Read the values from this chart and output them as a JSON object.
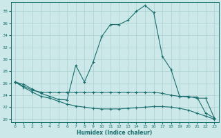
{
  "xlabel": "Humidex (Indice chaleur)",
  "background_color": "#cce8e8",
  "line_color": "#1a6e6e",
  "grid_color": "#b0d4d4",
  "xlim": [
    -0.5,
    23.5
  ],
  "ylim": [
    19.5,
    39.5
  ],
  "yticks": [
    20,
    22,
    24,
    26,
    28,
    30,
    32,
    34,
    36,
    38
  ],
  "xticks": [
    0,
    1,
    2,
    3,
    4,
    5,
    6,
    7,
    8,
    9,
    10,
    11,
    12,
    13,
    14,
    15,
    16,
    17,
    18,
    19,
    20,
    21,
    22,
    23
  ],
  "series1_x": [
    0,
    1,
    2,
    3,
    4,
    5,
    6,
    7,
    8,
    9,
    10,
    11,
    12,
    13,
    14,
    15,
    16,
    17,
    18,
    19,
    20,
    21,
    22,
    23
  ],
  "series1_y": [
    26.2,
    25.8,
    25.0,
    24.3,
    23.8,
    23.3,
    23.2,
    29.0,
    26.2,
    29.5,
    33.8,
    35.8,
    35.8,
    36.5,
    38.0,
    39.0,
    37.8,
    30.5,
    28.3,
    23.8,
    23.7,
    23.7,
    21.0,
    20.2
  ],
  "series2_x": [
    0,
    1,
    2,
    3,
    4,
    5,
    6,
    7,
    8,
    9,
    10,
    11,
    12,
    13,
    14,
    15,
    16,
    17,
    18,
    19,
    20,
    21,
    22,
    23
  ],
  "series2_y": [
    26.2,
    25.5,
    24.8,
    24.5,
    24.5,
    24.5,
    24.5,
    24.5,
    24.5,
    24.5,
    24.5,
    24.5,
    24.5,
    24.5,
    24.5,
    24.5,
    24.5,
    24.3,
    24.0,
    23.8,
    23.8,
    23.5,
    23.5,
    20.2
  ],
  "series3_x": [
    0,
    1,
    2,
    3,
    4,
    5,
    6,
    7,
    8,
    9,
    10,
    11,
    12,
    13,
    14,
    15,
    16,
    17,
    18,
    19,
    20,
    21,
    22,
    23
  ],
  "series3_y": [
    26.2,
    25.3,
    24.5,
    23.8,
    23.5,
    23.0,
    22.5,
    22.2,
    22.0,
    21.8,
    21.7,
    21.7,
    21.7,
    21.8,
    21.9,
    22.0,
    22.1,
    22.1,
    22.0,
    21.8,
    21.5,
    21.0,
    20.5,
    20.0
  ]
}
